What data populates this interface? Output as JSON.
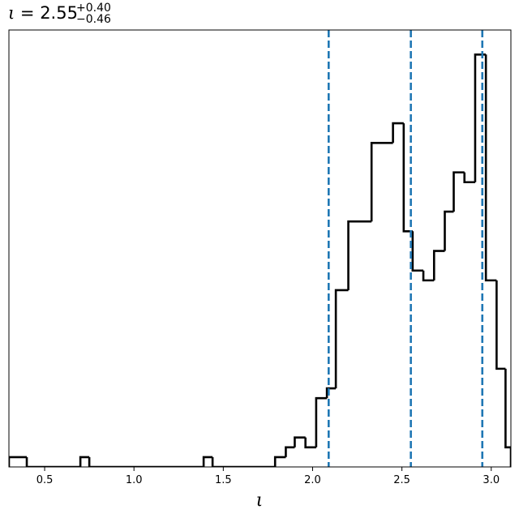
{
  "chart_data": {
    "type": "histogram",
    "title": {
      "symbol": "ι",
      "equals": " = ",
      "median": "2.55",
      "upper": "+0.40",
      "lower": "−0.46"
    },
    "xlabel": "ι",
    "ylabel": "",
    "xlim": [
      0.3,
      3.11
    ],
    "ylim": [
      0,
      44.5
    ],
    "xticks": [
      0.5,
      1.0,
      1.5,
      2.0,
      2.5,
      3.0
    ],
    "xtick_labels": [
      "0.5",
      "1.0",
      "1.5",
      "2.0",
      "2.5",
      "3.0"
    ],
    "yticks_shown": false,
    "grid": false,
    "hist_color": "#000000",
    "quantile_color": "#1f77b4",
    "bin_edges": [
      0.3,
      0.4,
      0.7,
      0.75,
      1.39,
      1.44,
      1.79,
      1.85,
      1.9,
      1.96,
      2.02,
      2.08,
      2.13,
      2.2,
      2.33,
      2.45,
      2.51,
      2.56,
      2.62,
      2.68,
      2.74,
      2.79,
      2.85,
      2.91,
      2.97,
      3.03,
      3.08,
      3.11
    ],
    "counts": [
      1,
      0,
      1,
      0,
      1,
      0,
      1,
      2,
      3,
      2,
      7,
      8,
      18,
      25,
      33,
      35,
      24,
      20,
      19,
      22,
      26,
      30,
      29,
      42,
      19,
      10,
      2
    ],
    "quantiles": [
      2.09,
      2.55,
      2.95
    ]
  }
}
